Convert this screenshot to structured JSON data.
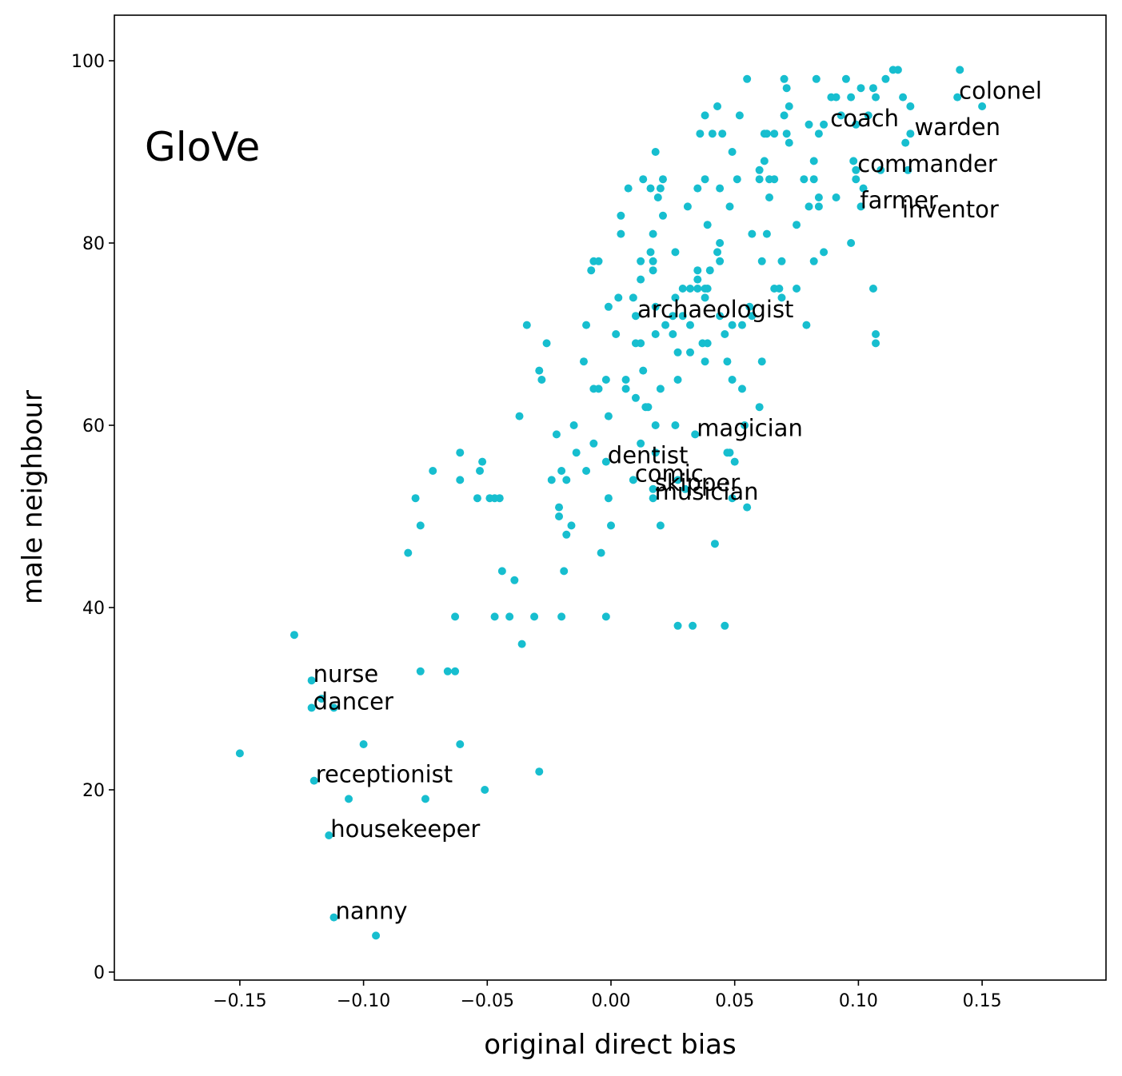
{
  "chart_data": {
    "type": "scatter",
    "panel_label": "GloVe",
    "xlabel": "original direct bias",
    "ylabel": "male neighbour",
    "xlim": [
      -0.2,
      0.2
    ],
    "ylim": [
      -1,
      104
    ],
    "x_ticks": [
      -0.15,
      -0.1,
      -0.05,
      0.0,
      0.05,
      0.1,
      0.15
    ],
    "x_tick_labels": [
      "−0.15",
      "−0.10",
      "−0.05",
      "0.00",
      "0.05",
      "0.10",
      "0.15"
    ],
    "y_ticks": [
      0,
      20,
      40,
      60,
      80,
      100
    ],
    "y_tick_labels": [
      "0",
      "20",
      "40",
      "60",
      "80",
      "100"
    ],
    "grid": false,
    "point_color": "#17BECF",
    "annotations": [
      {
        "label": "colonel",
        "x": 0.14,
        "y": 96
      },
      {
        "label": "coach",
        "x": 0.088,
        "y": 93
      },
      {
        "label": "warden",
        "x": 0.122,
        "y": 92
      },
      {
        "label": "commander",
        "x": 0.099,
        "y": 88
      },
      {
        "label": "farmer",
        "x": 0.1,
        "y": 84
      },
      {
        "label": "inventor",
        "x": 0.117,
        "y": 83
      },
      {
        "label": "archaeologist",
        "x": 0.01,
        "y": 72
      },
      {
        "label": "magician",
        "x": 0.034,
        "y": 59
      },
      {
        "label": "dentist",
        "x": -0.002,
        "y": 56
      },
      {
        "label": "comic",
        "x": 0.009,
        "y": 54
      },
      {
        "label": "skipper",
        "x": 0.017,
        "y": 53
      },
      {
        "label": "musician",
        "x": 0.017,
        "y": 52
      },
      {
        "label": "nurse",
        "x": -0.121,
        "y": 32
      },
      {
        "label": "dancer",
        "x": -0.121,
        "y": 29
      },
      {
        "label": "receptionist",
        "x": -0.12,
        "y": 21
      },
      {
        "label": "housekeeper",
        "x": -0.114,
        "y": 15
      },
      {
        "label": "nanny",
        "x": -0.112,
        "y": 6
      }
    ],
    "points": [
      [
        0.141,
        99
      ],
      [
        0.116,
        99
      ],
      [
        0.114,
        99
      ],
      [
        0.111,
        98
      ],
      [
        0.055,
        98
      ],
      [
        0.07,
        98
      ],
      [
        0.083,
        98
      ],
      [
        0.095,
        98
      ],
      [
        0.101,
        97
      ],
      [
        0.106,
        97
      ],
      [
        0.071,
        97
      ],
      [
        0.14,
        96
      ],
      [
        0.118,
        96
      ],
      [
        0.107,
        96
      ],
      [
        0.097,
        96
      ],
      [
        0.089,
        96
      ],
      [
        0.091,
        96
      ],
      [
        0.15,
        95
      ],
      [
        0.121,
        95
      ],
      [
        0.072,
        95
      ],
      [
        0.043,
        95
      ],
      [
        0.038,
        94
      ],
      [
        0.052,
        94
      ],
      [
        0.07,
        94
      ],
      [
        0.093,
        94
      ],
      [
        0.104,
        94
      ],
      [
        0.086,
        93
      ],
      [
        0.099,
        93
      ],
      [
        0.08,
        93
      ],
      [
        0.036,
        92
      ],
      [
        0.041,
        92
      ],
      [
        0.045,
        92
      ],
      [
        0.063,
        92
      ],
      [
        0.066,
        92
      ],
      [
        0.071,
        92
      ],
      [
        0.084,
        92
      ],
      [
        0.121,
        92
      ],
      [
        0.062,
        92
      ],
      [
        0.119,
        91
      ],
      [
        0.072,
        91
      ],
      [
        0.018,
        90
      ],
      [
        0.049,
        90
      ],
      [
        0.082,
        89
      ],
      [
        0.098,
        89
      ],
      [
        0.062,
        89
      ],
      [
        0.109,
        88
      ],
      [
        0.12,
        88
      ],
      [
        0.06,
        88
      ],
      [
        0.099,
        88
      ],
      [
        0.013,
        87
      ],
      [
        0.021,
        87
      ],
      [
        0.038,
        87
      ],
      [
        0.051,
        87
      ],
      [
        0.06,
        87
      ],
      [
        0.064,
        87
      ],
      [
        0.066,
        87
      ],
      [
        0.078,
        87
      ],
      [
        0.082,
        87
      ],
      [
        0.099,
        87
      ],
      [
        0.007,
        86
      ],
      [
        0.016,
        86
      ],
      [
        0.02,
        86
      ],
      [
        0.035,
        86
      ],
      [
        0.044,
        86
      ],
      [
        0.102,
        86
      ],
      [
        0.019,
        85
      ],
      [
        0.064,
        85
      ],
      [
        0.084,
        85
      ],
      [
        0.091,
        85
      ],
      [
        0.031,
        84
      ],
      [
        0.048,
        84
      ],
      [
        0.08,
        84
      ],
      [
        0.084,
        84
      ],
      [
        0.101,
        84
      ],
      [
        0.004,
        83
      ],
      [
        0.021,
        83
      ],
      [
        0.039,
        82
      ],
      [
        0.075,
        82
      ],
      [
        0.004,
        81
      ],
      [
        0.017,
        81
      ],
      [
        0.057,
        81
      ],
      [
        0.063,
        81
      ],
      [
        0.044,
        80
      ],
      [
        0.097,
        80
      ],
      [
        0.016,
        79
      ],
      [
        0.026,
        79
      ],
      [
        0.043,
        79
      ],
      [
        0.086,
        79
      ],
      [
        -0.007,
        78
      ],
      [
        -0.005,
        78
      ],
      [
        0.012,
        78
      ],
      [
        0.017,
        78
      ],
      [
        0.044,
        78
      ],
      [
        0.061,
        78
      ],
      [
        0.069,
        78
      ],
      [
        0.082,
        78
      ],
      [
        -0.008,
        77
      ],
      [
        0.017,
        77
      ],
      [
        0.035,
        77
      ],
      [
        0.04,
        77
      ],
      [
        0.012,
        76
      ],
      [
        0.035,
        76
      ],
      [
        0.029,
        75
      ],
      [
        0.032,
        75
      ],
      [
        0.035,
        75
      ],
      [
        0.038,
        75
      ],
      [
        0.039,
        75
      ],
      [
        0.066,
        75
      ],
      [
        0.068,
        75
      ],
      [
        0.075,
        75
      ],
      [
        0.106,
        75
      ],
      [
        0.003,
        74
      ],
      [
        0.009,
        74
      ],
      [
        0.026,
        74
      ],
      [
        0.038,
        74
      ],
      [
        0.069,
        74
      ],
      [
        -0.001,
        73
      ],
      [
        0.018,
        73
      ],
      [
        0.056,
        73
      ],
      [
        0.01,
        72
      ],
      [
        0.025,
        72
      ],
      [
        0.029,
        72
      ],
      [
        0.044,
        72
      ],
      [
        0.057,
        72
      ],
      [
        -0.034,
        71
      ],
      [
        -0.01,
        71
      ],
      [
        0.022,
        71
      ],
      [
        0.032,
        71
      ],
      [
        0.049,
        71
      ],
      [
        0.053,
        71
      ],
      [
        0.079,
        71
      ],
      [
        0.002,
        70
      ],
      [
        0.018,
        70
      ],
      [
        0.025,
        70
      ],
      [
        0.046,
        70
      ],
      [
        0.107,
        70
      ],
      [
        -0.026,
        69
      ],
      [
        0.01,
        69
      ],
      [
        0.012,
        69
      ],
      [
        0.037,
        69
      ],
      [
        0.039,
        69
      ],
      [
        0.107,
        69
      ],
      [
        0.027,
        68
      ],
      [
        0.032,
        68
      ],
      [
        -0.011,
        67
      ],
      [
        0.038,
        67
      ],
      [
        0.047,
        67
      ],
      [
        0.061,
        67
      ],
      [
        -0.029,
        66
      ],
      [
        0.013,
        66
      ],
      [
        -0.028,
        65
      ],
      [
        -0.002,
        65
      ],
      [
        0.006,
        65
      ],
      [
        0.027,
        65
      ],
      [
        0.049,
        65
      ],
      [
        -0.007,
        64
      ],
      [
        -0.005,
        64
      ],
      [
        0.006,
        64
      ],
      [
        0.02,
        64
      ],
      [
        0.053,
        64
      ],
      [
        0.01,
        63
      ],
      [
        0.014,
        62
      ],
      [
        0.015,
        62
      ],
      [
        0.06,
        62
      ],
      [
        -0.037,
        61
      ],
      [
        -0.001,
        61
      ],
      [
        -0.015,
        60
      ],
      [
        0.018,
        60
      ],
      [
        0.026,
        60
      ],
      [
        0.054,
        60
      ],
      [
        -0.022,
        59
      ],
      [
        0.034,
        59
      ],
      [
        -0.007,
        58
      ],
      [
        0.012,
        58
      ],
      [
        -0.061,
        57
      ],
      [
        -0.014,
        57
      ],
      [
        0.018,
        57
      ],
      [
        0.047,
        57
      ],
      [
        0.048,
        57
      ],
      [
        -0.052,
        56
      ],
      [
        -0.002,
        56
      ],
      [
        0.05,
        56
      ],
      [
        -0.072,
        55
      ],
      [
        -0.053,
        55
      ],
      [
        -0.02,
        55
      ],
      [
        -0.01,
        55
      ],
      [
        -0.061,
        54
      ],
      [
        -0.024,
        54
      ],
      [
        -0.018,
        54
      ],
      [
        0.009,
        54
      ],
      [
        0.027,
        54
      ],
      [
        0.017,
        53
      ],
      [
        0.03,
        53
      ],
      [
        -0.079,
        52
      ],
      [
        -0.054,
        52
      ],
      [
        -0.049,
        52
      ],
      [
        -0.047,
        52
      ],
      [
        -0.045,
        52
      ],
      [
        -0.001,
        52
      ],
      [
        0.017,
        52
      ],
      [
        0.049,
        52
      ],
      [
        -0.021,
        51
      ],
      [
        0.055,
        51
      ],
      [
        -0.021,
        50
      ],
      [
        -0.077,
        49
      ],
      [
        -0.016,
        49
      ],
      [
        0.0,
        49
      ],
      [
        0.02,
        49
      ],
      [
        -0.018,
        48
      ],
      [
        0.042,
        47
      ],
      [
        -0.082,
        46
      ],
      [
        -0.004,
        46
      ],
      [
        -0.044,
        44
      ],
      [
        -0.019,
        44
      ],
      [
        -0.039,
        43
      ],
      [
        -0.063,
        39
      ],
      [
        -0.047,
        39
      ],
      [
        -0.041,
        39
      ],
      [
        -0.031,
        39
      ],
      [
        -0.02,
        39
      ],
      [
        -0.002,
        39
      ],
      [
        -0.036,
        36
      ],
      [
        0.027,
        38
      ],
      [
        0.033,
        38
      ],
      [
        0.046,
        38
      ],
      [
        -0.128,
        37
      ],
      [
        -0.077,
        33
      ],
      [
        -0.066,
        33
      ],
      [
        -0.063,
        33
      ],
      [
        -0.121,
        32
      ],
      [
        -0.117,
        30
      ],
      [
        -0.121,
        29
      ],
      [
        -0.112,
        29
      ],
      [
        -0.15,
        24
      ],
      [
        -0.1,
        25
      ],
      [
        -0.061,
        25
      ],
      [
        -0.029,
        22
      ],
      [
        -0.12,
        21
      ],
      [
        -0.106,
        19
      ],
      [
        -0.075,
        19
      ],
      [
        -0.051,
        20
      ],
      [
        -0.114,
        15
      ],
      [
        -0.112,
        6
      ],
      [
        -0.095,
        4
      ]
    ]
  }
}
